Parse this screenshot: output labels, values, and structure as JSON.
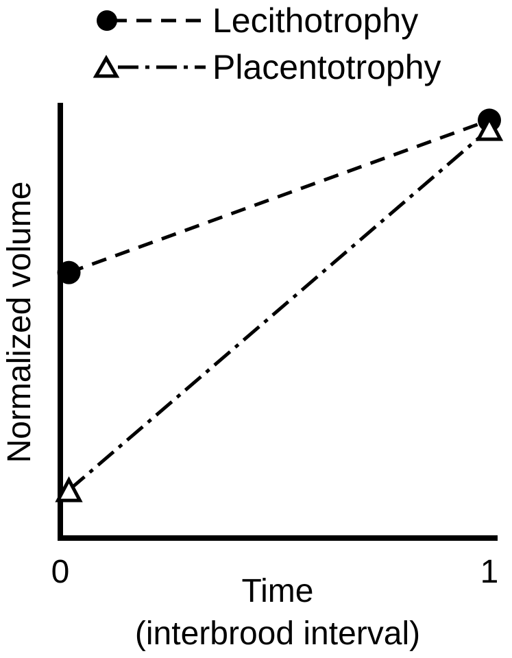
{
  "chart_data": {
    "type": "line",
    "title": "",
    "xlabel": "Time",
    "xlabel_sub": "(interbrood interval)",
    "ylabel": "Normalized volume",
    "x_ticks": [
      "0",
      "1"
    ],
    "xlim": [
      0,
      1
    ],
    "ylim": [
      0,
      1
    ],
    "grid": false,
    "legend_position": "top-center",
    "series": [
      {
        "name": "Lecithotrophy",
        "marker": "filled-circle",
        "line_style": "dashed",
        "x": [
          0.02,
          1.0
        ],
        "y": [
          0.61,
          0.96
        ]
      },
      {
        "name": "Placentotrophy",
        "marker": "open-triangle",
        "line_style": "dash-dot",
        "x": [
          0.02,
          1.0
        ],
        "y": [
          0.11,
          0.94
        ]
      }
    ],
    "colors": {
      "line": "#000000",
      "background": "#ffffff"
    }
  }
}
